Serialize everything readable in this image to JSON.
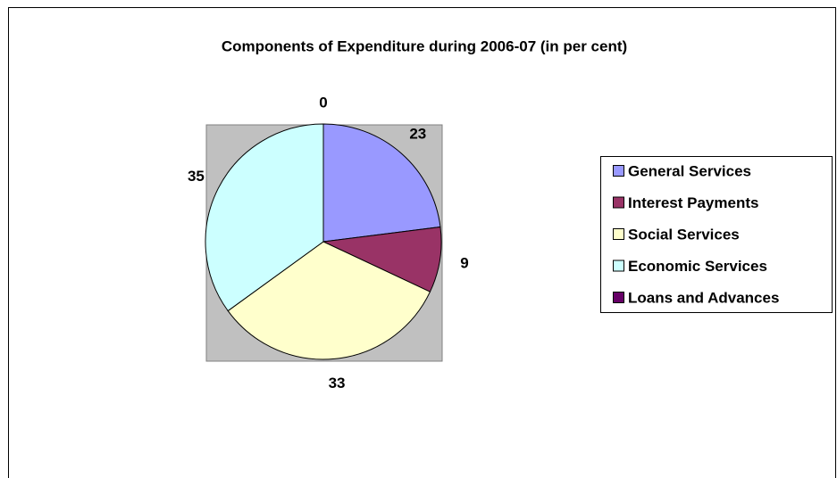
{
  "chart_data": {
    "type": "pie",
    "title": "Components of Expenditure during 2006-07 (in per cent)",
    "categories": [
      "General Services",
      "Interest Payments",
      "Social Services",
      "Economic Services",
      "Loans and Advances"
    ],
    "values": [
      23,
      9,
      33,
      35,
      0
    ],
    "colors": [
      "#9999ff",
      "#993366",
      "#ffffcc",
      "#ccffff",
      "#660066"
    ],
    "legend": "right"
  }
}
